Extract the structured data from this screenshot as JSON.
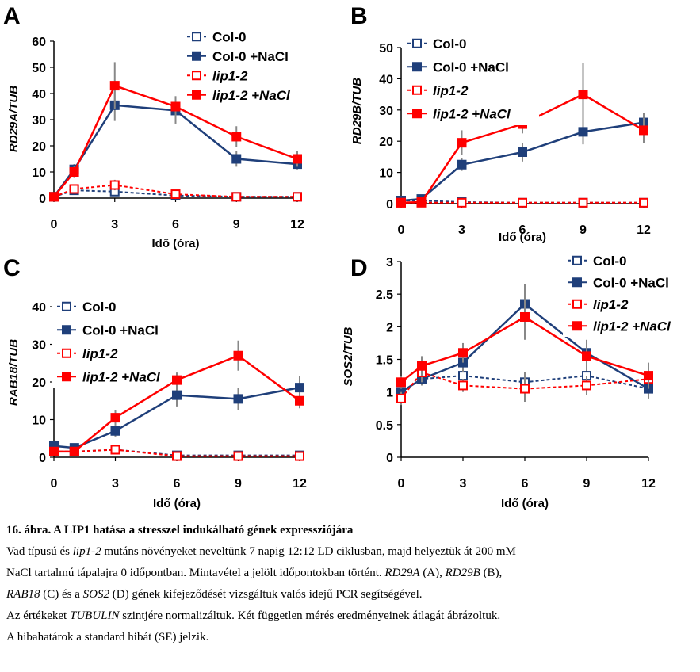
{
  "colors": {
    "col0": "#1f3f7a",
    "lip": "#ff0000",
    "error": "#888888",
    "axis": "#000000"
  },
  "charts": [
    {
      "panel": "A",
      "type": "line",
      "ylabel": "RD29A/TUB",
      "xlabel": "Idő (óra)",
      "x": [
        0,
        1,
        3,
        6,
        9,
        12
      ],
      "xticks": [
        0,
        3,
        6,
        9,
        12
      ],
      "yticks": [
        "0",
        "10",
        "20",
        "30",
        "40",
        "50",
        "60"
      ],
      "ylim": [
        0,
        60
      ],
      "legend": "top-right",
      "series": [
        {
          "name": "Col-0",
          "values": [
            0.5,
            3,
            2.5,
            1,
            0.5,
            0.5
          ],
          "err": [
            0.5,
            1,
            1,
            0.5,
            0.3,
            0.3
          ]
        },
        {
          "name": "Col-0 +NaCl",
          "values": [
            0.5,
            11,
            35.5,
            33.5,
            15,
            13
          ],
          "err": [
            0.5,
            2,
            6,
            5,
            3,
            2
          ]
        },
        {
          "name": "lip1-2",
          "values": [
            0.5,
            3.5,
            5,
            1.5,
            0.5,
            0.5
          ],
          "err": [
            0.5,
            1.5,
            2,
            0.8,
            0.3,
            0.3
          ]
        },
        {
          "name": "lip1-2 +NaCl",
          "values": [
            0.5,
            10,
            43,
            35,
            23.5,
            15
          ],
          "err": [
            0.5,
            2,
            9,
            4,
            4,
            3
          ]
        }
      ]
    },
    {
      "panel": "B",
      "type": "line",
      "ylabel": "RD29B/TUB",
      "xlabel": "Idő (óra)",
      "x": [
        0,
        1,
        3,
        6,
        9,
        12
      ],
      "xticks": [
        0,
        3,
        6,
        9,
        12
      ],
      "yticks": [
        "0",
        "10",
        "20",
        "30",
        "40",
        "50"
      ],
      "ylim": [
        0,
        50
      ],
      "legend": "top-left",
      "series": [
        {
          "name": "Col-0",
          "values": [
            1,
            1,
            0.5,
            0.3,
            0.3,
            0.3
          ],
          "err": [
            0.5,
            0.5,
            0.3,
            0.2,
            0.2,
            0.2
          ]
        },
        {
          "name": "Col-0 +NaCl",
          "values": [
            1,
            1.5,
            12.5,
            16.5,
            23,
            26
          ],
          "err": [
            0.5,
            1,
            2,
            3,
            4,
            3
          ]
        },
        {
          "name": "lip1-2",
          "values": [
            0.3,
            0.3,
            0.3,
            0.3,
            0.3,
            0.3
          ],
          "err": [
            0.2,
            0.2,
            0.2,
            0.2,
            0.2,
            0.2
          ]
        },
        {
          "name": "lip1-2 +NaCl",
          "values": [
            0.3,
            0.5,
            19.5,
            25.5,
            35,
            23.5
          ],
          "err": [
            0.2,
            0.5,
            4,
            3,
            10,
            4
          ]
        }
      ]
    },
    {
      "panel": "C",
      "type": "line",
      "ylabel": "RAB18/TUB",
      "xlabel": "Idő (óra)",
      "x": [
        0,
        1,
        3,
        6,
        9,
        12
      ],
      "xticks": [
        0,
        3,
        6,
        9,
        12
      ],
      "yticks": [
        "0",
        "10",
        "20",
        "30",
        "40"
      ],
      "ylim": [
        0,
        40
      ],
      "legend": "top-left",
      "series": [
        {
          "name": "Col-0",
          "values": [
            1.5,
            1.5,
            2,
            0.5,
            0.5,
            0.5
          ],
          "err": [
            0.5,
            0.5,
            0.5,
            0.3,
            0.3,
            0.3
          ]
        },
        {
          "name": "Col-0 +NaCl",
          "values": [
            3,
            2.5,
            7,
            16.5,
            15.5,
            18.5
          ],
          "err": [
            0.8,
            0.8,
            1.5,
            3,
            3,
            3
          ]
        },
        {
          "name": "lip1-2",
          "values": [
            1.5,
            1.5,
            2,
            0.3,
            0.3,
            0.3
          ],
          "err": [
            0.5,
            0.5,
            0.5,
            0.2,
            0.2,
            0.2
          ]
        },
        {
          "name": "lip1-2 +NaCl",
          "values": [
            1.5,
            1.5,
            10.5,
            20.5,
            27,
            15
          ],
          "err": [
            0.5,
            0.5,
            2,
            2,
            4,
            2
          ]
        }
      ]
    },
    {
      "panel": "D",
      "type": "line",
      "ylabel": "SOS2/TUB",
      "xlabel": "Idő (óra)",
      "x": [
        0,
        1,
        3,
        6,
        9,
        12
      ],
      "xticks": [
        0,
        3,
        6,
        9,
        12
      ],
      "yticks": [
        "0",
        "0.5",
        "1",
        "1.5",
        "2",
        "2.5",
        "3"
      ],
      "ylim": [
        0,
        3
      ],
      "legend": "top-right",
      "series": [
        {
          "name": "Col-0",
          "values": [
            1,
            1.2,
            1.25,
            1.15,
            1.25,
            1.05
          ],
          "err": [
            0.1,
            0.1,
            0.1,
            0.15,
            0.15,
            0.1
          ]
        },
        {
          "name": "Col-0 +NaCl",
          "values": [
            1,
            1.2,
            1.45,
            2.35,
            1.6,
            1.05
          ],
          "err": [
            0.1,
            0.1,
            0.15,
            0.3,
            0.2,
            0.15
          ]
        },
        {
          "name": "lip1-2",
          "values": [
            0.9,
            1.3,
            1.1,
            1.05,
            1.1,
            1.2
          ],
          "err": [
            0.1,
            0.15,
            0.1,
            0.2,
            0.15,
            0.1
          ]
        },
        {
          "name": "lip1-2 +NaCl",
          "values": [
            1.15,
            1.4,
            1.6,
            2.15,
            1.55,
            1.25
          ],
          "err": [
            0.1,
            0.15,
            0.15,
            0.35,
            0.2,
            0.2
          ]
        }
      ]
    }
  ],
  "caption": {
    "line1": "16. ábra. A LIP1 hatása a stresszel indukálható gének expressziójára",
    "line2a": "Vad típusú és ",
    "line2b": "lip1-2",
    "line2c": " mutáns növényeket neveltünk 7 napig 12:12 LD ciklusban, majd helyeztük át 200 mM",
    "line3a": "NaCl tartalmú tápalajra 0 időpontban. Mintavétel a jelölt időpontokban történt. ",
    "line3b": "RD29A",
    "line3c": " (A), ",
    "line3d": "RD29B",
    "line3e": " (B),",
    "line4a": "RAB18",
    "line4b": " (C) és a ",
    "line4c": "SOS2",
    "line4d": " (D) gének kifejeződését vizsgáltuk valós idejű PCR segítségével.",
    "line5a": "Az értékeket ",
    "line5b": "TUBULIN",
    "line5c": " szintjére normalizáltuk. Két független mérés eredményeinek átlagát ábrázoltuk.",
    "line6": "A hibahatárok a standard hibát (SE) jelzik."
  }
}
